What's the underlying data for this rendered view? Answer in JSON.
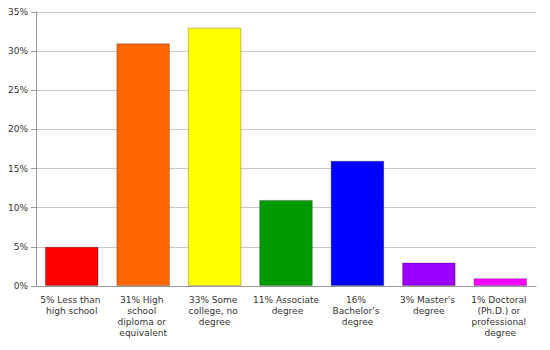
{
  "chart_data": {
    "type": "bar",
    "categories": [
      "5% Less than high school",
      "31% High school diploma or equivalent",
      "33% Some college, no degree",
      "11% Associate degree",
      "16% Bachelor's degree",
      "3% Master's degree",
      "1% Doctoral (Ph.D.) or professional degree"
    ],
    "values": [
      5,
      31,
      33,
      11,
      16,
      3,
      1
    ],
    "colors": [
      "#ff0000",
      "#ff6600",
      "#ffff00",
      "#009900",
      "#0000ff",
      "#9900ff",
      "#ff00ff"
    ],
    "ylim": [
      0,
      35
    ],
    "yticks": [
      {
        "value": 0,
        "label": "0%"
      },
      {
        "value": 5,
        "label": "5%"
      },
      {
        "value": 10,
        "label": "10%"
      },
      {
        "value": 15,
        "label": "15%"
      },
      {
        "value": 20,
        "label": "20%"
      },
      {
        "value": 25,
        "label": "25%"
      },
      {
        "value": 30,
        "label": "30%"
      },
      {
        "value": 35,
        "label": "35%"
      }
    ],
    "grid": true
  }
}
